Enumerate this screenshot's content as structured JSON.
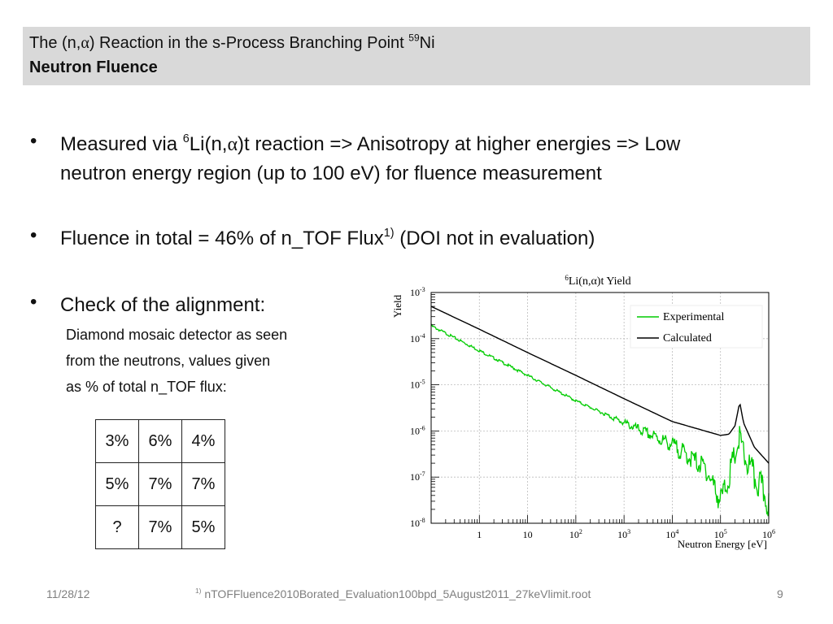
{
  "header": {
    "title_prefix": "The (n,",
    "title_alpha": "α",
    "title_mid": ") Reaction in the s-Process Branching Point ",
    "title_sup": "59",
    "title_suffix": "Ni",
    "subtitle": "Neutron Fluence"
  },
  "bullets": {
    "b1_a": "Measured via ",
    "b1_sup": "6",
    "b1_b": "Li(n,",
    "b1_alpha": "α",
    "b1_c": ")t reaction => Anisotropy at higher energies => Low",
    "b1_line2": "neutron energy region (up to 100 eV) for fluence measurement",
    "b2_a": "Fluence in total = 46% of n_TOF Flux",
    "b2_sup": "1)",
    "b2_b": " (DOI not in evaluation)",
    "b3": "Check of the alignment:",
    "b3_sub": [
      "Diamond mosaic detector as seen",
      "from the neutrons, values given",
      "as % of total n_TOF flux:"
    ],
    "bullet_symbol": "•"
  },
  "alignment_table": [
    [
      "3%",
      "6%",
      "4%"
    ],
    [
      "5%",
      "7%",
      "7%"
    ],
    [
      "?",
      "7%",
      "5%"
    ]
  ],
  "footer": {
    "date": "11/28/12",
    "note_sup": "1)",
    "note": " nTOFFluence2010Borated_Evaluation100bpd_5August2011_27keVlimit.root",
    "page": "9"
  },
  "chart_data": {
    "type": "line",
    "title_sup": "6",
    "title": "Li(n,α)t Yield",
    "xlabel": "Neutron Energy [eV]",
    "ylabel": "Yield",
    "xscale": "log",
    "yscale": "log",
    "xlim": [
      0.1,
      1000000
    ],
    "ylim": [
      1e-08,
      0.001
    ],
    "x_ticks": [
      {
        "base": "1",
        "exp": ""
      },
      {
        "base": "10",
        "exp": ""
      },
      {
        "base": "10",
        "exp": "2"
      },
      {
        "base": "10",
        "exp": "3"
      },
      {
        "base": "10",
        "exp": "4"
      },
      {
        "base": "10",
        "exp": "5"
      },
      {
        "base": "10",
        "exp": "6"
      }
    ],
    "y_ticks": [
      {
        "base": "10",
        "exp": "-3"
      },
      {
        "base": "10",
        "exp": "-4"
      },
      {
        "base": "10",
        "exp": "-5"
      },
      {
        "base": "10",
        "exp": "-6"
      },
      {
        "base": "10",
        "exp": "-7"
      },
      {
        "base": "10",
        "exp": "-8"
      }
    ],
    "legend_position": "top-right",
    "series": [
      {
        "name": "Experimental",
        "color": "#00cc00",
        "points": [
          [
            0.1,
            0.00019
          ],
          [
            1,
            5.5e-05
          ],
          [
            10,
            1.6e-05
          ],
          [
            100,
            4.5e-06
          ],
          [
            1000,
            1.5e-06
          ],
          [
            10000,
            5e-07
          ],
          [
            50000,
            1.5e-07
          ],
          [
            100000,
            3e-08
          ],
          [
            150000,
            1e-07
          ],
          [
            250000,
            7e-07
          ],
          [
            300000,
            3e-07
          ],
          [
            500000,
            1e-07
          ],
          [
            1000000,
            3e-08
          ]
        ]
      },
      {
        "name": "Calculated",
        "color": "#000000",
        "points": [
          [
            0.1,
            0.0005
          ],
          [
            1,
            0.00016
          ],
          [
            10,
            5e-05
          ],
          [
            100,
            1.6e-05
          ],
          [
            1000,
            5e-06
          ],
          [
            10000,
            1.6e-06
          ],
          [
            100000,
            8e-07
          ],
          [
            150000,
            8.5e-07
          ],
          [
            200000,
            1.3e-06
          ],
          [
            250000,
            4.2e-06
          ],
          [
            300000,
            1.5e-06
          ],
          [
            500000,
            4.5e-07
          ],
          [
            1000000,
            2e-07
          ]
        ]
      }
    ]
  }
}
